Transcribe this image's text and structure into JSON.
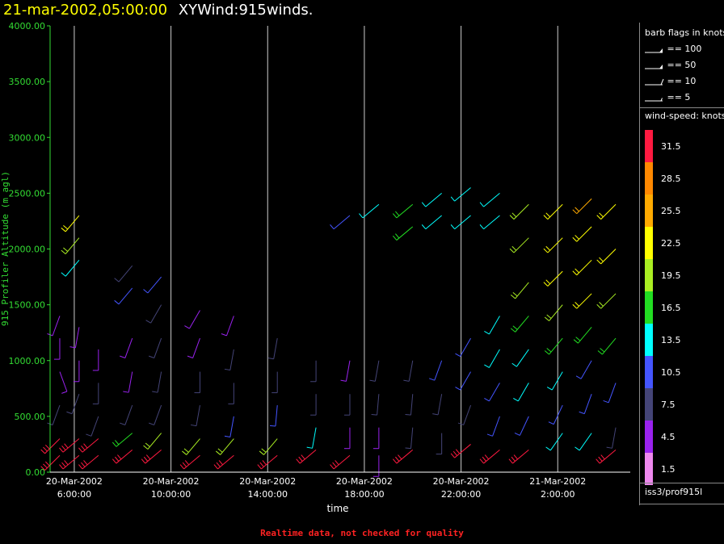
{
  "title": {
    "date": "21-mar-2002,05:00:00",
    "name": "XYWind:915winds."
  },
  "footer": "Realtime data, not checked for quality",
  "legend": {
    "barb_title": "barb flags in knots",
    "barbs": [
      {
        "label": "== 100",
        "kind": "pennant"
      },
      {
        "label": "== 50",
        "kind": "pennant"
      },
      {
        "label": "== 10",
        "kind": "full"
      },
      {
        "label": "== 5",
        "kind": "half"
      }
    ],
    "speed_title": "wind-speed: knots",
    "station": "iss3/prof915l"
  },
  "chart_data": {
    "type": "wind-barb time-height",
    "ylabel": "915 Profiler Altitude (m agl)",
    "xlabel": "time",
    "ylim": [
      0,
      4000
    ],
    "yticks": [
      "0.00",
      "500.00",
      "1000.00",
      "1500.00",
      "2000.00",
      "2500.00",
      "3000.00",
      "3500.00",
      "4000.00"
    ],
    "xticks": [
      {
        "date": "20-Mar-2002",
        "time": "6:00:00",
        "hour": 6
      },
      {
        "date": "20-Mar-2002",
        "time": "10:00:00",
        "hour": 10
      },
      {
        "date": "20-Mar-2002",
        "time": "14:00:00",
        "hour": 14
      },
      {
        "date": "20-Mar-2002",
        "time": "18:00:00",
        "hour": 18
      },
      {
        "date": "20-Mar-2002",
        "time": "22:00:00",
        "hour": 22
      },
      {
        "date": "21-Mar-2002",
        "time": "2:00:00",
        "hour": 26
      }
    ],
    "xlim_hours": [
      5.0,
      29.0
    ],
    "speed_scale": [
      {
        "label": "31.5",
        "color": "#ff1a40"
      },
      {
        "label": "28.5",
        "color": "#ff8800"
      },
      {
        "label": "25.5",
        "color": "#ffaa00"
      },
      {
        "label": "22.5",
        "color": "#ffff00"
      },
      {
        "label": "19.5",
        "color": "#aaee22"
      },
      {
        "label": "16.5",
        "color": "#22dd22"
      },
      {
        "label": "13.5",
        "color": "#00ffff"
      },
      {
        "label": "10.5",
        "color": "#4455ff"
      },
      {
        "label": "7.5",
        "color": "#444477"
      },
      {
        "label": "4.5",
        "color": "#9922ee"
      },
      {
        "label": "1.5",
        "color": "#ee88ee"
      }
    ],
    "series": [
      {
        "hour": 5.4,
        "barbs": [
          [
            150,
            31,
            225
          ],
          [
            300,
            31,
            225
          ],
          [
            600,
            7,
            200
          ],
          [
            900,
            5,
            160
          ],
          [
            1200,
            4,
            180
          ],
          [
            1400,
            5,
            200
          ]
        ]
      },
      {
        "hour": 6.2,
        "barbs": [
          [
            150,
            31,
            230
          ],
          [
            300,
            31,
            230
          ],
          [
            700,
            6,
            200
          ],
          [
            1000,
            5,
            180
          ],
          [
            1300,
            4,
            190
          ],
          [
            1900,
            14,
            220
          ],
          [
            2100,
            20,
            220
          ],
          [
            2300,
            21,
            220
          ]
        ]
      },
      {
        "hour": 7.0,
        "barbs": [
          [
            150,
            31,
            230
          ],
          [
            300,
            31,
            230
          ],
          [
            500,
            8,
            200
          ],
          [
            800,
            6,
            180
          ],
          [
            1100,
            4,
            180
          ]
        ]
      },
      {
        "hour": 8.4,
        "barbs": [
          [
            200,
            31,
            230
          ],
          [
            350,
            15,
            230
          ],
          [
            600,
            6,
            200
          ],
          [
            900,
            5,
            190
          ],
          [
            1200,
            5,
            200
          ],
          [
            1650,
            9,
            220
          ],
          [
            1850,
            8,
            220
          ]
        ]
      },
      {
        "hour": 9.6,
        "barbs": [
          [
            200,
            31,
            230
          ],
          [
            350,
            18,
            220
          ],
          [
            600,
            7,
            200
          ],
          [
            900,
            6,
            190
          ],
          [
            1200,
            7,
            200
          ],
          [
            1500,
            8,
            210
          ],
          [
            1750,
            9,
            220
          ]
        ]
      },
      {
        "hour": 11.2,
        "barbs": [
          [
            150,
            31,
            230
          ],
          [
            300,
            20,
            220
          ],
          [
            600,
            8,
            190
          ],
          [
            900,
            6,
            180
          ],
          [
            1200,
            5,
            200
          ],
          [
            1450,
            5,
            210
          ]
        ]
      },
      {
        "hour": 12.6,
        "barbs": [
          [
            150,
            31,
            230
          ],
          [
            300,
            19,
            220
          ],
          [
            500,
            9,
            190
          ],
          [
            800,
            7,
            180
          ],
          [
            1100,
            6,
            190
          ],
          [
            1400,
            5,
            200
          ]
        ]
      },
      {
        "hour": 14.4,
        "barbs": [
          [
            150,
            31,
            230
          ],
          [
            300,
            20,
            220
          ],
          [
            600,
            11,
            185
          ],
          [
            900,
            8,
            180
          ],
          [
            1200,
            6,
            190
          ]
        ]
      },
      {
        "hour": 16.0,
        "barbs": [
          [
            200,
            31,
            230
          ],
          [
            400,
            12,
            190
          ],
          [
            700,
            8,
            180
          ],
          [
            1000,
            6,
            180
          ]
        ]
      },
      {
        "hour": 17.4,
        "barbs": [
          [
            150,
            31,
            230
          ],
          [
            400,
            5,
            180
          ],
          [
            700,
            6,
            180
          ],
          [
            1000,
            5,
            190
          ],
          [
            2300,
            11,
            230
          ]
        ]
      },
      {
        "hour": 18.6,
        "barbs": [
          [
            150,
            4,
            180
          ],
          [
            400,
            5,
            180
          ],
          [
            700,
            6,
            185
          ],
          [
            1000,
            7,
            190
          ],
          [
            2400,
            12,
            230
          ]
        ]
      },
      {
        "hour": 20.0,
        "barbs": [
          [
            200,
            31,
            230
          ],
          [
            400,
            6,
            185
          ],
          [
            700,
            7,
            185
          ],
          [
            1000,
            6,
            190
          ],
          [
            2200,
            15,
            230
          ],
          [
            2400,
            17,
            230
          ]
        ]
      },
      {
        "hour": 21.2,
        "barbs": [
          [
            350,
            6,
            180
          ],
          [
            700,
            8,
            190
          ],
          [
            1000,
            10,
            200
          ],
          [
            2300,
            14,
            230
          ],
          [
            2500,
            13,
            230
          ]
        ]
      },
      {
        "hour": 22.4,
        "barbs": [
          [
            250,
            31,
            230
          ],
          [
            600,
            8,
            200
          ],
          [
            900,
            10,
            210
          ],
          [
            1200,
            11,
            210
          ],
          [
            2300,
            13,
            230
          ],
          [
            2550,
            12,
            230
          ]
        ]
      },
      {
        "hour": 23.6,
        "barbs": [
          [
            200,
            31,
            230
          ],
          [
            500,
            9,
            200
          ],
          [
            800,
            11,
            210
          ],
          [
            1100,
            13,
            210
          ],
          [
            1400,
            12,
            210
          ],
          [
            2300,
            14,
            230
          ],
          [
            2500,
            13,
            230
          ]
        ]
      },
      {
        "hour": 24.8,
        "barbs": [
          [
            200,
            31,
            230
          ],
          [
            500,
            10,
            205
          ],
          [
            800,
            12,
            210
          ],
          [
            1100,
            14,
            215
          ],
          [
            1400,
            16,
            220
          ],
          [
            1700,
            18,
            220
          ],
          [
            2100,
            18,
            225
          ],
          [
            2400,
            19,
            225
          ]
        ]
      },
      {
        "hour": 26.2,
        "barbs": [
          [
            350,
            13,
            215
          ],
          [
            600,
            11,
            205
          ],
          [
            900,
            13,
            210
          ],
          [
            1200,
            16,
            220
          ],
          [
            1500,
            19,
            220
          ],
          [
            1800,
            21,
            225
          ],
          [
            2100,
            23,
            225
          ],
          [
            2400,
            22,
            225
          ]
        ]
      },
      {
        "hour": 27.4,
        "barbs": [
          [
            350,
            13,
            215
          ],
          [
            700,
            9,
            200
          ],
          [
            1000,
            11,
            210
          ],
          [
            1300,
            17,
            220
          ],
          [
            1600,
            21,
            225
          ],
          [
            1900,
            22,
            225
          ],
          [
            2200,
            23,
            225
          ],
          [
            2450,
            24,
            225
          ]
        ]
      },
      {
        "hour": 28.4,
        "barbs": [
          [
            200,
            31,
            230
          ],
          [
            400,
            6,
            190
          ],
          [
            800,
            9,
            200
          ],
          [
            1200,
            15,
            220
          ],
          [
            1600,
            20,
            225
          ],
          [
            2000,
            23,
            225
          ],
          [
            2400,
            22,
            225
          ]
        ]
      }
    ]
  }
}
